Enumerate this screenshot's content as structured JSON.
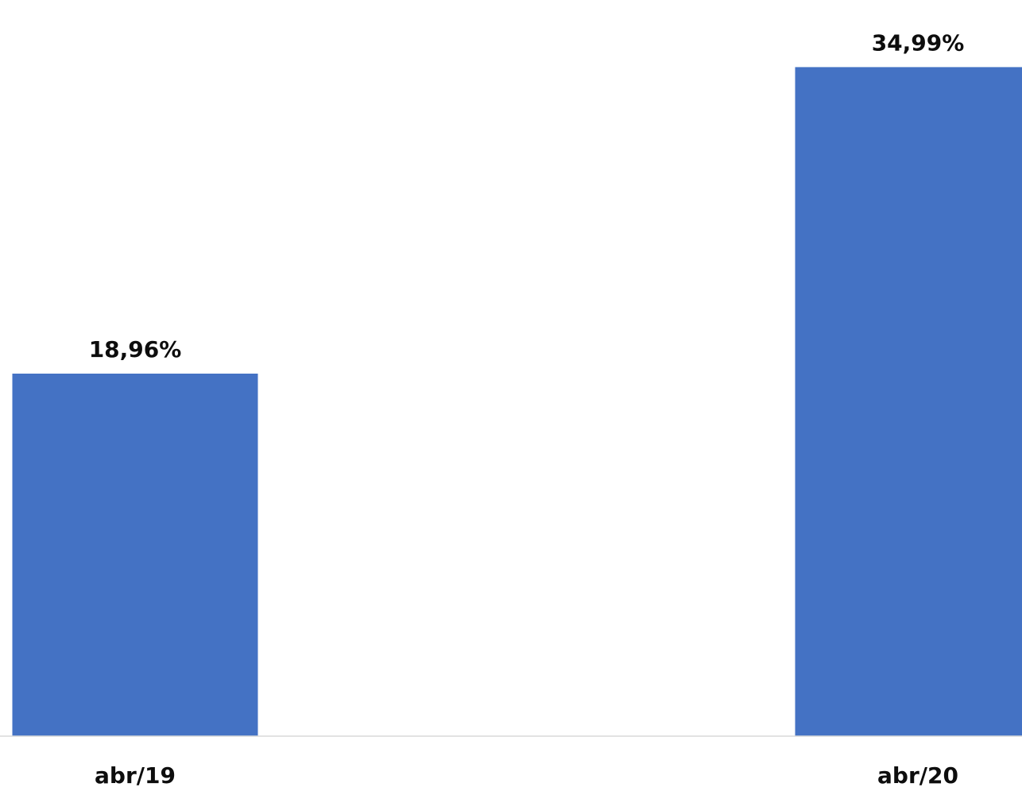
{
  "chart_data": {
    "type": "bar",
    "categories": [
      "abr/19",
      "abr/20"
    ],
    "values": [
      18.96,
      34.99
    ],
    "value_labels": [
      "18,96%",
      "34,99%"
    ],
    "ylim": [
      0,
      38.5
    ],
    "grid": false,
    "bar_color": "#4472c4",
    "axis_color": "#d9d9d9"
  }
}
